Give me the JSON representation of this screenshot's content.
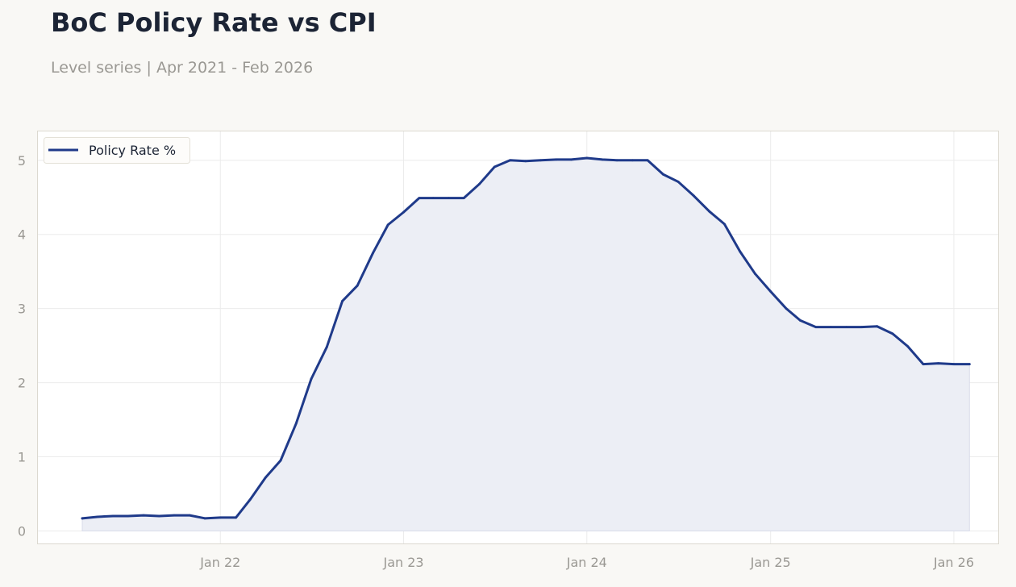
{
  "header": {
    "title": "BoC Policy Rate vs CPI",
    "subtitle": "Level series | Apr 2021 - Feb 2026"
  },
  "colors": {
    "series": "#1f3a8a",
    "fill": "#eceef5",
    "grid": "#ebebeb",
    "frame": "#dcd9d0",
    "tick_text": "#9a9893"
  },
  "chart_data": {
    "type": "area",
    "title": "BoC Policy Rate vs CPI",
    "subtitle": "Level series | Apr 2021 - Feb 2026",
    "xlabel": "",
    "ylabel": "",
    "legend_position": "top-left",
    "grid": true,
    "xlim": [
      "2021-01-01",
      "2026-04-01"
    ],
    "ylim": [
      -0.18,
      5.4
    ],
    "x_ticks": [
      {
        "date": "2022-01-01",
        "label": "Jan 22"
      },
      {
        "date": "2023-01-01",
        "label": "Jan 23"
      },
      {
        "date": "2024-01-01",
        "label": "Jan 24"
      },
      {
        "date": "2025-01-01",
        "label": "Jan 25"
      },
      {
        "date": "2026-01-01",
        "label": "Jan 26"
      }
    ],
    "y_ticks": [
      0,
      1,
      2,
      3,
      4,
      5
    ],
    "series": [
      {
        "name": "Policy Rate %",
        "x": [
          "2021-04",
          "2021-05",
          "2021-06",
          "2021-07",
          "2021-08",
          "2021-09",
          "2021-10",
          "2021-11",
          "2021-12",
          "2022-01",
          "2022-02",
          "2022-03",
          "2022-04",
          "2022-05",
          "2022-06",
          "2022-07",
          "2022-08",
          "2022-09",
          "2022-10",
          "2022-11",
          "2022-12",
          "2023-01",
          "2023-02",
          "2023-03",
          "2023-04",
          "2023-05",
          "2023-06",
          "2023-07",
          "2023-08",
          "2023-09",
          "2023-10",
          "2023-11",
          "2023-12",
          "2024-01",
          "2024-02",
          "2024-03",
          "2024-04",
          "2024-05",
          "2024-06",
          "2024-07",
          "2024-08",
          "2024-09",
          "2024-10",
          "2024-11",
          "2024-12",
          "2025-01",
          "2025-02",
          "2025-03",
          "2025-04",
          "2025-05",
          "2025-06",
          "2025-07",
          "2025-08",
          "2025-09",
          "2025-10",
          "2025-11",
          "2025-12",
          "2026-01",
          "2026-02"
        ],
        "values": [
          0.17,
          0.19,
          0.2,
          0.2,
          0.21,
          0.2,
          0.21,
          0.21,
          0.17,
          0.18,
          0.18,
          0.42,
          0.72,
          0.95,
          1.45,
          2.05,
          2.48,
          3.1,
          3.31,
          3.75,
          4.13,
          4.3,
          4.49,
          4.49,
          4.49,
          4.49,
          4.68,
          4.91,
          5.0,
          4.99,
          5.0,
          5.01,
          5.01,
          5.03,
          5.01,
          5.0,
          5.0,
          5.0,
          4.81,
          4.71,
          4.52,
          4.31,
          4.14,
          3.77,
          3.47,
          3.23,
          3.0,
          2.84,
          2.75,
          2.75,
          2.75,
          2.75,
          2.76,
          2.66,
          2.49,
          2.25,
          2.26,
          2.25,
          2.25
        ]
      }
    ]
  }
}
